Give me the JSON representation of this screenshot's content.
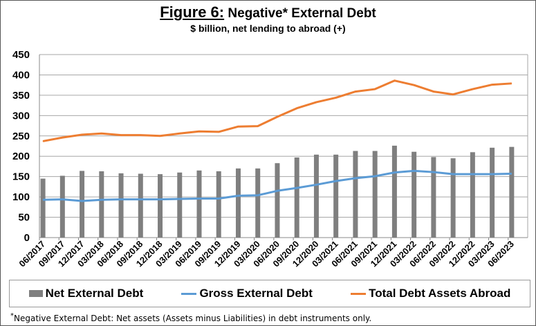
{
  "chart_data": {
    "type": "bar+line",
    "title_prefix": "Figure 6:",
    "title": "Negative* External Debt",
    "subtitle": "$ billion, net lending to abroad (+)",
    "ylim": [
      0,
      450
    ],
    "yticks": [
      0,
      50,
      100,
      150,
      200,
      250,
      300,
      350,
      400,
      450
    ],
    "grid": true,
    "legend": "bottom",
    "categories": [
      "06/2017",
      "09/2017",
      "12/2017",
      "03/2018",
      "06/2018",
      "09/2018",
      "12/2018",
      "03/2019",
      "06/2019",
      "09/2019",
      "12/2019",
      "03/2020",
      "06/2020",
      "09/2020",
      "12/2020",
      "03/2021",
      "06/2021",
      "09/2021",
      "12/2021",
      "03/2022",
      "06/2022",
      "09/2022",
      "12/2022",
      "03/2023",
      "06/2023"
    ],
    "series": [
      {
        "name": "Net External Debt",
        "type": "bar",
        "color": "#7f7f7f",
        "values": [
          145,
          152,
          164,
          163,
          158,
          157,
          156,
          160,
          165,
          163,
          170,
          170,
          183,
          197,
          204,
          204,
          213,
          213,
          226,
          211,
          198,
          195,
          210,
          221,
          223
        ]
      },
      {
        "name": "Gross External Debt",
        "type": "line",
        "color": "#5b9bd5",
        "values": [
          93,
          94,
          90,
          93,
          94,
          94,
          94,
          95,
          96,
          96,
          103,
          104,
          115,
          122,
          130,
          139,
          146,
          151,
          160,
          164,
          161,
          156,
          156,
          156,
          157
        ]
      },
      {
        "name": "Total Debt Assets Abroad",
        "type": "line",
        "color": "#ed7d31",
        "values": [
          237,
          246,
          253,
          256,
          252,
          252,
          250,
          256,
          261,
          260,
          273,
          274,
          297,
          318,
          333,
          344,
          359,
          365,
          386,
          375,
          359,
          352,
          365,
          376,
          379
        ]
      }
    ]
  },
  "footnote_mark": "*",
  "footnote": "Negative External Debt: Net assets (Assets minus Liabilities)  in debt instruments only."
}
